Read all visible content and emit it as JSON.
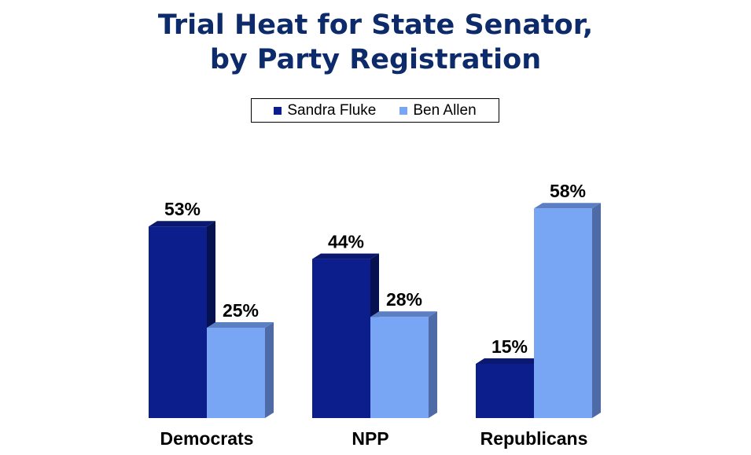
{
  "chart_data": {
    "type": "bar",
    "title_line1": "Trial Heat for State Senator,",
    "title_line2": "by Party Registration",
    "categories": [
      "Democrats",
      "NPP",
      "Republicans"
    ],
    "series": [
      {
        "name": "Sandra Fluke",
        "values": [
          53,
          44,
          15
        ],
        "color": "#0b1e8c",
        "side_color": "#06114f",
        "top_color": "#0a1870"
      },
      {
        "name": "Ben Allen",
        "values": [
          25,
          28,
          58
        ],
        "color": "#78a6f5",
        "side_color": "#4f6ba7",
        "top_color": "#5c7fc4"
      }
    ],
    "value_suffix": "%",
    "ylim": [
      0,
      60
    ],
    "grid": false,
    "legend_position": "top-center"
  }
}
